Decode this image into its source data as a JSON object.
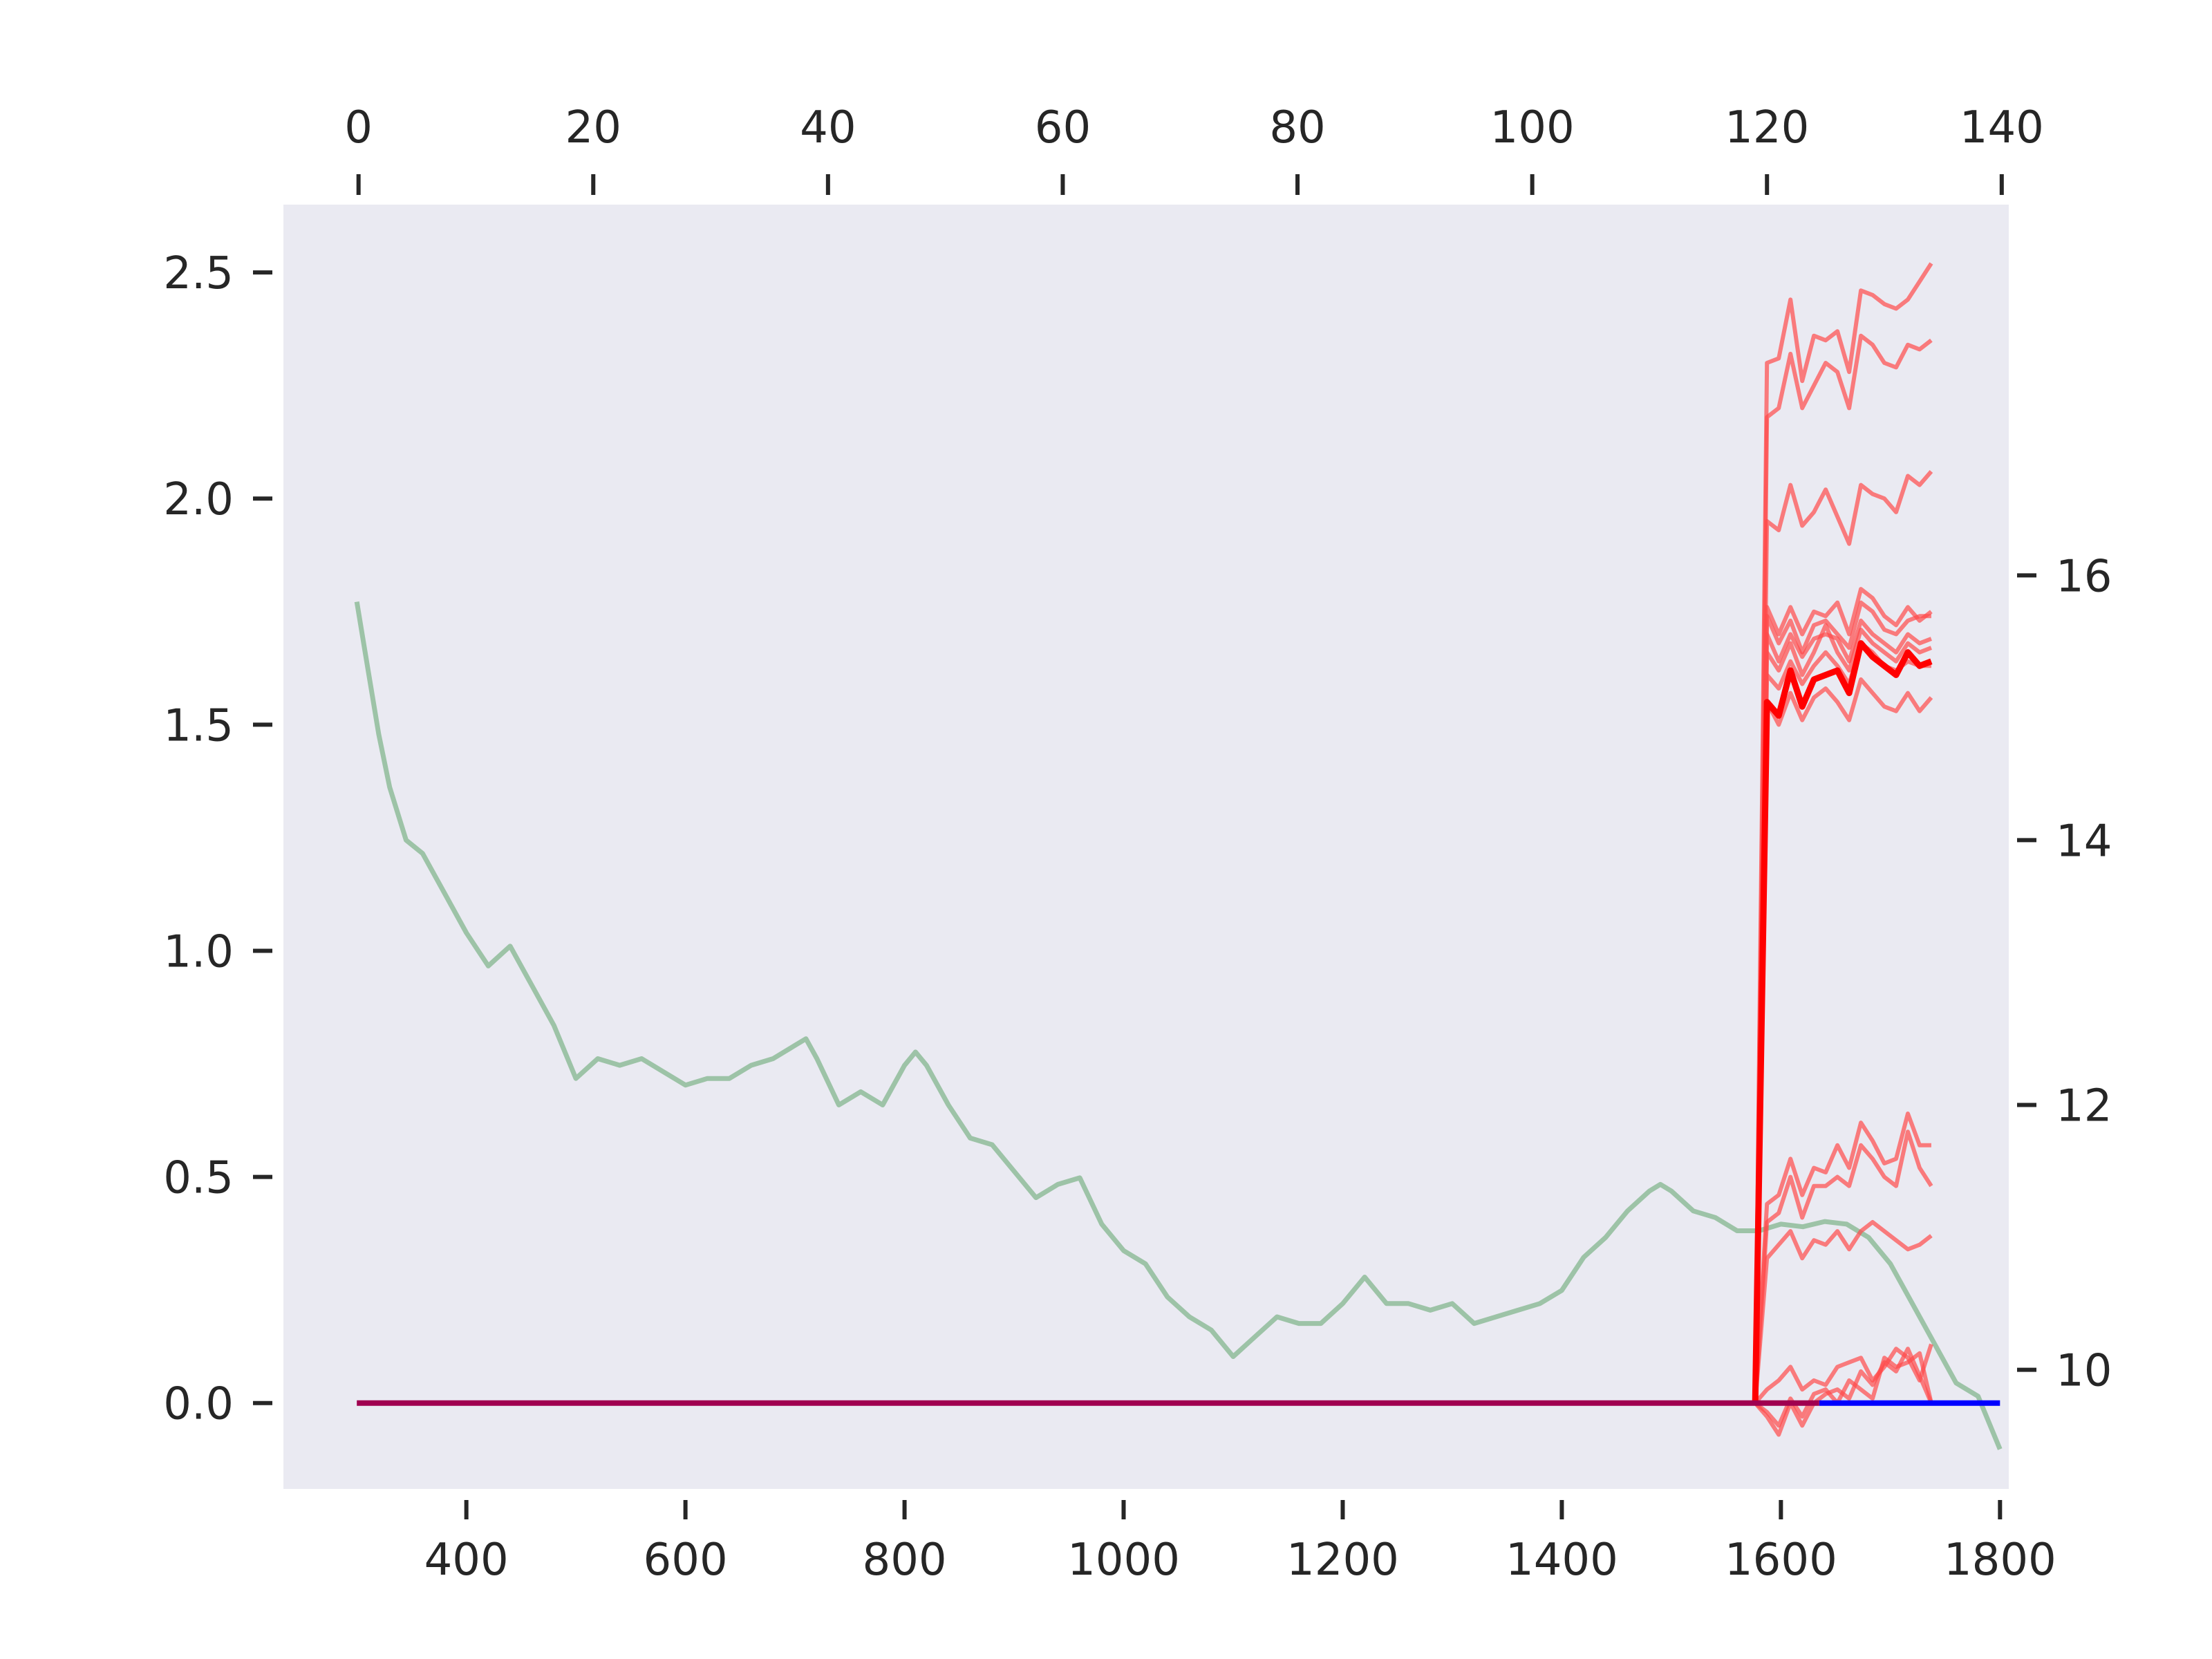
{
  "chart_data": {
    "type": "line",
    "title": "",
    "colors": {
      "background": "#EAEAF2",
      "history": "#8FBC9A",
      "samples": "#FF4A4A",
      "mean": "#FF0000",
      "baseline": "#A00050",
      "blue_segment": "#0000FF",
      "ticks": "#262626"
    },
    "axes": {
      "bottom": {
        "lim": [
          233,
          1808
        ],
        "ticks": [
          400,
          600,
          800,
          1000,
          1200,
          1400,
          1600,
          1800
        ]
      },
      "top": {
        "lim": [
          -6.4,
          140.6
        ],
        "ticks": [
          0,
          20,
          40,
          60,
          80,
          100,
          120,
          140
        ]
      },
      "left": {
        "lim": [
          -0.19,
          2.65
        ],
        "ticks": [
          0.0,
          0.5,
          1.0,
          1.5,
          2.0,
          2.5
        ],
        "tick_labels": [
          "0.0",
          "0.5",
          "1.0",
          "1.5",
          "2.0",
          "2.5"
        ]
      },
      "right": {
        "lim": [
          9.1,
          18.8
        ],
        "ticks": [
          10,
          12,
          14,
          16
        ]
      }
    },
    "history_series": {
      "axis": "bottom-right",
      "x": [
        300,
        310,
        320,
        330,
        345,
        360,
        380,
        400,
        420,
        440,
        460,
        480,
        500,
        520,
        540,
        560,
        580,
        600,
        620,
        640,
        660,
        680,
        700,
        710,
        720,
        740,
        760,
        780,
        800,
        810,
        820,
        840,
        860,
        880,
        900,
        920,
        940,
        960,
        980,
        1000,
        1020,
        1040,
        1060,
        1080,
        1100,
        1120,
        1140,
        1160,
        1180,
        1200,
        1220,
        1240,
        1260,
        1280,
        1300,
        1320,
        1340,
        1360,
        1380,
        1400,
        1420,
        1440,
        1460,
        1480,
        1490,
        1500,
        1520,
        1540,
        1560,
        1580,
        1600,
        1620,
        1640,
        1660,
        1680,
        1700,
        1720,
        1740,
        1760,
        1780,
        1800
      ],
      "y": [
        15.8,
        15.3,
        14.8,
        14.4,
        14.0,
        13.9,
        13.6,
        13.3,
        13.05,
        13.2,
        12.9,
        12.6,
        12.2,
        12.35,
        12.3,
        12.35,
        12.25,
        12.15,
        12.2,
        12.2,
        12.3,
        12.35,
        12.45,
        12.5,
        12.35,
        12.0,
        12.1,
        12.0,
        12.3,
        12.4,
        12.3,
        12.0,
        11.75,
        11.7,
        11.5,
        11.3,
        11.4,
        11.45,
        11.1,
        10.9,
        10.8,
        10.55,
        10.4,
        10.3,
        10.1,
        10.25,
        10.4,
        10.35,
        10.35,
        10.5,
        10.7,
        10.5,
        10.5,
        10.45,
        10.5,
        10.35,
        10.4,
        10.45,
        10.5,
        10.6,
        10.85,
        11.0,
        11.2,
        11.35,
        11.4,
        11.35,
        11.2,
        11.15,
        11.05,
        11.05,
        11.1,
        11.08,
        11.12,
        11.1,
        11.0,
        10.8,
        10.5,
        10.2,
        9.9,
        9.8,
        9.4
      ]
    },
    "baseline_series": {
      "axis": "bottom-left",
      "x": [
        300,
        1635
      ],
      "y": [
        0.0,
        0.0
      ]
    },
    "blue_segment": {
      "axis": "bottom-left",
      "x": [
        1635,
        1800
      ],
      "y": [
        0.0,
        0.0
      ]
    },
    "sample_series_x": [
      119,
      120,
      121,
      122,
      123,
      124,
      125,
      126,
      127,
      128,
      129,
      130,
      131,
      132,
      133,
      134
    ],
    "sample_series": [
      {
        "values": [
          0,
          2.3,
          2.31,
          2.44,
          2.26,
          2.36,
          2.35,
          2.37,
          2.28,
          2.46,
          2.45,
          2.43,
          2.42,
          2.44,
          2.48,
          2.52
        ]
      },
      {
        "values": [
          0,
          2.18,
          2.2,
          2.32,
          2.2,
          2.25,
          2.3,
          2.28,
          2.2,
          2.36,
          2.34,
          2.3,
          2.29,
          2.34,
          2.33,
          2.35
        ]
      },
      {
        "values": [
          0,
          1.95,
          1.93,
          2.03,
          1.94,
          1.97,
          2.02,
          1.96,
          1.9,
          2.03,
          2.01,
          2.0,
          1.97,
          2.05,
          2.03,
          2.06
        ]
      },
      {
        "values": [
          0,
          1.76,
          1.7,
          1.76,
          1.7,
          1.75,
          1.74,
          1.77,
          1.7,
          1.8,
          1.78,
          1.74,
          1.72,
          1.76,
          1.73,
          1.75
        ]
      },
      {
        "values": [
          0,
          1.74,
          1.68,
          1.73,
          1.66,
          1.72,
          1.73,
          1.7,
          1.67,
          1.77,
          1.75,
          1.71,
          1.7,
          1.73,
          1.74,
          1.74
        ]
      },
      {
        "values": [
          0,
          1.7,
          1.64,
          1.7,
          1.65,
          1.69,
          1.7,
          1.69,
          1.64,
          1.73,
          1.7,
          1.68,
          1.66,
          1.7,
          1.68,
          1.69
        ]
      },
      {
        "values": [
          0,
          1.66,
          1.62,
          1.68,
          1.61,
          1.66,
          1.72,
          1.66,
          1.62,
          1.71,
          1.68,
          1.66,
          1.64,
          1.68,
          1.66,
          1.67
        ]
      },
      {
        "values": [
          0,
          1.61,
          1.58,
          1.64,
          1.59,
          1.63,
          1.66,
          1.63,
          1.59,
          1.68,
          1.66,
          1.63,
          1.62,
          1.64,
          1.63,
          1.63
        ]
      },
      {
        "values": [
          0,
          1.55,
          1.5,
          1.57,
          1.51,
          1.56,
          1.58,
          1.55,
          1.51,
          1.6,
          1.57,
          1.54,
          1.53,
          1.57,
          1.53,
          1.56
        ]
      },
      {
        "values": [
          0,
          0.44,
          0.46,
          0.54,
          0.46,
          0.52,
          0.51,
          0.57,
          0.52,
          0.62,
          0.58,
          0.53,
          0.54,
          0.64,
          0.57,
          0.57
        ]
      },
      {
        "values": [
          0,
          0.4,
          0.42,
          0.5,
          0.41,
          0.48,
          0.48,
          0.5,
          0.48,
          0.57,
          0.54,
          0.5,
          0.48,
          0.6,
          0.52,
          0.48
        ]
      },
      {
        "values": [
          0,
          0.32,
          0.35,
          0.38,
          0.32,
          0.36,
          0.35,
          0.38,
          0.34,
          0.38,
          0.4,
          0.38,
          0.36,
          0.34,
          0.35,
          0.37
        ]
      },
      {
        "values": [
          0,
          0.03,
          0.05,
          0.08,
          0.03,
          0.05,
          0.04,
          0.08,
          0.09,
          0.1,
          0.05,
          0.08,
          0.12,
          0.1,
          0.05,
          0.13
        ]
      },
      {
        "values": [
          0,
          -0.02,
          -0.05,
          0.01,
          -0.03,
          0.02,
          0.03,
          0.0,
          0.05,
          0.03,
          0.01,
          0.1,
          0.08,
          0.09,
          0.11,
          0.0
        ]
      },
      {
        "values": [
          0,
          -0.03,
          -0.07,
          0.0,
          -0.05,
          0.0,
          0.02,
          0.03,
          0.01,
          0.07,
          0.04,
          0.09,
          0.07,
          0.12,
          0.06,
          0.0
        ]
      }
    ],
    "mean_series": {
      "values": [
        0,
        1.55,
        1.52,
        1.62,
        1.54,
        1.6,
        1.61,
        1.62,
        1.57,
        1.68,
        1.65,
        1.63,
        1.61,
        1.66,
        1.63,
        1.64
      ]
    }
  }
}
